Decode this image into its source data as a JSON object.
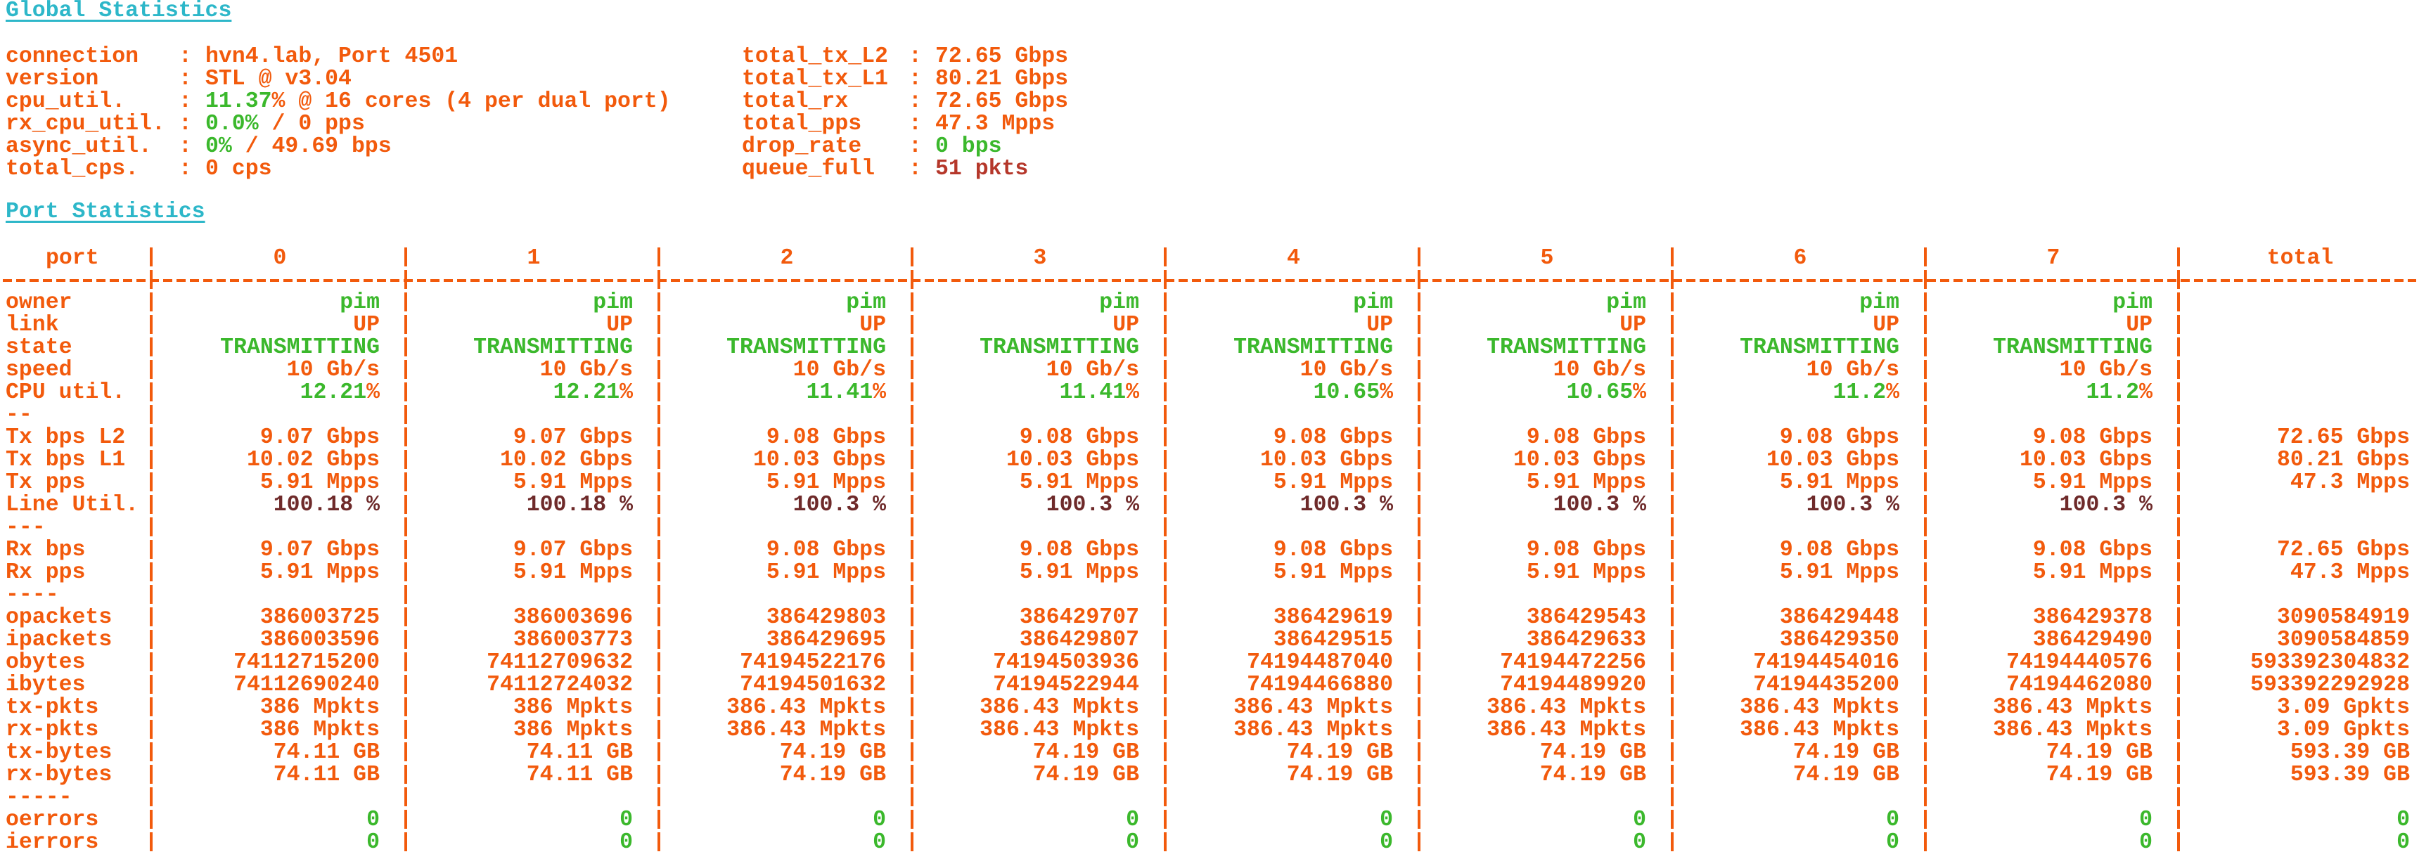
{
  "global_title": "Global Statistics",
  "port_title": "Port Statistics",
  "colors": {
    "orange": "#f25a0c",
    "green": "#3bb82c",
    "cyan": "#2db7c9",
    "darkred": "#6e2a2a",
    "red": "#b5372a"
  },
  "global_left": [
    {
      "key": "connection",
      "parts": [
        {
          "t": "hvn4.lab, Port 4501",
          "c": "orange"
        }
      ]
    },
    {
      "key": "version",
      "parts": [
        {
          "t": "STL @ v3.04",
          "c": "orange"
        }
      ]
    },
    {
      "key": "cpu_util.",
      "parts": [
        {
          "t": "11.37",
          "c": "green"
        },
        {
          "t": "% @ 16 cores (4 per dual port)",
          "c": "orange"
        }
      ]
    },
    {
      "key": "rx_cpu_util.",
      "parts": [
        {
          "t": "0.0%",
          "c": "green"
        },
        {
          "t": " / 0 pps",
          "c": "orange"
        }
      ]
    },
    {
      "key": "async_util.",
      "parts": [
        {
          "t": "0%",
          "c": "green"
        },
        {
          "t": " / 49.69 bps",
          "c": "orange"
        }
      ]
    },
    {
      "key": "total_cps.",
      "parts": [
        {
          "t": "0 cps",
          "c": "orange"
        }
      ]
    }
  ],
  "global_right": [
    {
      "key": "total_tx_L2",
      "parts": [
        {
          "t": "72.65 Gbps",
          "c": "orange"
        }
      ]
    },
    {
      "key": "total_tx_L1",
      "parts": [
        {
          "t": "80.21 Gbps",
          "c": "orange"
        }
      ]
    },
    {
      "key": "total_rx",
      "parts": [
        {
          "t": "72.65 Gbps",
          "c": "orange"
        }
      ]
    },
    {
      "key": "total_pps",
      "parts": [
        {
          "t": "47.3 Mpps",
          "c": "orange"
        }
      ]
    },
    {
      "key": "drop_rate",
      "parts": [
        {
          "t": "0 bps",
          "c": "green"
        }
      ]
    },
    {
      "key": "queue_full",
      "parts": [
        {
          "t": "51 pkts",
          "c": "red"
        }
      ]
    }
  ],
  "table": {
    "headers": [
      "port",
      "0",
      "1",
      "2",
      "3",
      "4",
      "5",
      "6",
      "7",
      "total"
    ],
    "rows": [
      {
        "label": "owner",
        "style": "green",
        "values": [
          "pim",
          "pim",
          "pim",
          "pim",
          "pim",
          "pim",
          "pim",
          "pim"
        ],
        "total": ""
      },
      {
        "label": "link",
        "style": "orange",
        "values": [
          "UP",
          "UP",
          "UP",
          "UP",
          "UP",
          "UP",
          "UP",
          "UP"
        ],
        "total": ""
      },
      {
        "label": "state",
        "style": "green",
        "values": [
          "TRANSMITTING",
          "TRANSMITTING",
          "TRANSMITTING",
          "TRANSMITTING",
          "TRANSMITTING",
          "TRANSMITTING",
          "TRANSMITTING",
          "TRANSMITTING"
        ],
        "total": ""
      },
      {
        "label": "speed",
        "style": "orange",
        "values": [
          "10 Gb/s",
          "10 Gb/s",
          "10 Gb/s",
          "10 Gb/s",
          "10 Gb/s",
          "10 Gb/s",
          "10 Gb/s",
          "10 Gb/s"
        ],
        "total": ""
      },
      {
        "label": "CPU util.",
        "style": "pct",
        "values": [
          "12.21%",
          "12.21%",
          "11.41%",
          "11.41%",
          "10.65%",
          "10.65%",
          "11.2%",
          "11.2%"
        ],
        "total": ""
      },
      {
        "label": "--",
        "style": "orange",
        "values": [
          "",
          "",
          "",
          "",
          "",
          "",
          "",
          ""
        ],
        "total": ""
      },
      {
        "label": "Tx bps L2",
        "style": "orange",
        "values": [
          "9.07 Gbps",
          "9.07 Gbps",
          "9.08 Gbps",
          "9.08 Gbps",
          "9.08 Gbps",
          "9.08 Gbps",
          "9.08 Gbps",
          "9.08 Gbps"
        ],
        "total": "72.65 Gbps"
      },
      {
        "label": "Tx bps L1",
        "style": "orange",
        "values": [
          "10.02 Gbps",
          "10.02 Gbps",
          "10.03 Gbps",
          "10.03 Gbps",
          "10.03 Gbps",
          "10.03 Gbps",
          "10.03 Gbps",
          "10.03 Gbps"
        ],
        "total": "80.21 Gbps"
      },
      {
        "label": "Tx pps",
        "style": "orange",
        "values": [
          "5.91 Mpps",
          "5.91 Mpps",
          "5.91 Mpps",
          "5.91 Mpps",
          "5.91 Mpps",
          "5.91 Mpps",
          "5.91 Mpps",
          "5.91 Mpps"
        ],
        "total": "47.3 Mpps"
      },
      {
        "label": "Line Util.",
        "style": "darkred",
        "values": [
          "100.18 %",
          "100.18 %",
          "100.3 %",
          "100.3 %",
          "100.3 %",
          "100.3 %",
          "100.3 %",
          "100.3 %"
        ],
        "total": ""
      },
      {
        "label": "---",
        "style": "orange",
        "values": [
          "",
          "",
          "",
          "",
          "",
          "",
          "",
          ""
        ],
        "total": ""
      },
      {
        "label": "Rx bps",
        "style": "orange",
        "values": [
          "9.07 Gbps",
          "9.07 Gbps",
          "9.08 Gbps",
          "9.08 Gbps",
          "9.08 Gbps",
          "9.08 Gbps",
          "9.08 Gbps",
          "9.08 Gbps"
        ],
        "total": "72.65 Gbps"
      },
      {
        "label": "Rx pps",
        "style": "orange",
        "values": [
          "5.91 Mpps",
          "5.91 Mpps",
          "5.91 Mpps",
          "5.91 Mpps",
          "5.91 Mpps",
          "5.91 Mpps",
          "5.91 Mpps",
          "5.91 Mpps"
        ],
        "total": "47.3 Mpps"
      },
      {
        "label": "----",
        "style": "orange",
        "values": [
          "",
          "",
          "",
          "",
          "",
          "",
          "",
          ""
        ],
        "total": ""
      },
      {
        "label": "opackets",
        "style": "orange",
        "values": [
          "386003725",
          "386003696",
          "386429803",
          "386429707",
          "386429619",
          "386429543",
          "386429448",
          "386429378"
        ],
        "total": "3090584919"
      },
      {
        "label": "ipackets",
        "style": "orange",
        "values": [
          "386003596",
          "386003773",
          "386429695",
          "386429807",
          "386429515",
          "386429633",
          "386429350",
          "386429490"
        ],
        "total": "3090584859"
      },
      {
        "label": "obytes",
        "style": "orange",
        "values": [
          "74112715200",
          "74112709632",
          "74194522176",
          "74194503936",
          "74194487040",
          "74194472256",
          "74194454016",
          "74194440576"
        ],
        "total": "593392304832"
      },
      {
        "label": "ibytes",
        "style": "orange",
        "values": [
          "74112690240",
          "74112724032",
          "74194501632",
          "74194522944",
          "74194466880",
          "74194489920",
          "74194435200",
          "74194462080"
        ],
        "total": "593392292928"
      },
      {
        "label": "tx-pkts",
        "style": "orange",
        "values": [
          "386 Mpkts",
          "386 Mpkts",
          "386.43 Mpkts",
          "386.43 Mpkts",
          "386.43 Mpkts",
          "386.43 Mpkts",
          "386.43 Mpkts",
          "386.43 Mpkts"
        ],
        "total": "3.09 Gpkts"
      },
      {
        "label": "rx-pkts",
        "style": "orange",
        "values": [
          "386 Mpkts",
          "386 Mpkts",
          "386.43 Mpkts",
          "386.43 Mpkts",
          "386.43 Mpkts",
          "386.43 Mpkts",
          "386.43 Mpkts",
          "386.43 Mpkts"
        ],
        "total": "3.09 Gpkts"
      },
      {
        "label": "tx-bytes",
        "style": "orange",
        "values": [
          "74.11 GB",
          "74.11 GB",
          "74.19 GB",
          "74.19 GB",
          "74.19 GB",
          "74.19 GB",
          "74.19 GB",
          "74.19 GB"
        ],
        "total": "593.39 GB"
      },
      {
        "label": "rx-bytes",
        "style": "orange",
        "values": [
          "74.11 GB",
          "74.11 GB",
          "74.19 GB",
          "74.19 GB",
          "74.19 GB",
          "74.19 GB",
          "74.19 GB",
          "74.19 GB"
        ],
        "total": "593.39 GB"
      },
      {
        "label": "-----",
        "style": "orange",
        "values": [
          "",
          "",
          "",
          "",
          "",
          "",
          "",
          ""
        ],
        "total": ""
      },
      {
        "label": "oerrors",
        "style": "green",
        "values": [
          "0",
          "0",
          "0",
          "0",
          "0",
          "0",
          "0",
          "0"
        ],
        "total": "0"
      },
      {
        "label": "ierrors",
        "style": "green",
        "values": [
          "0",
          "0",
          "0",
          "0",
          "0",
          "0",
          "0",
          "0"
        ],
        "total": "0"
      }
    ]
  }
}
